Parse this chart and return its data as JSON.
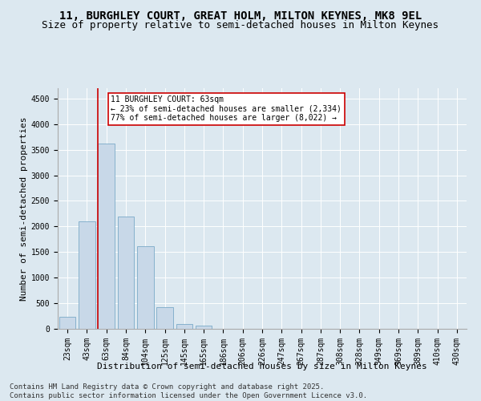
{
  "title": "11, BURGHLEY COURT, GREAT HOLM, MILTON KEYNES, MK8 9EL",
  "subtitle": "Size of property relative to semi-detached houses in Milton Keynes",
  "xlabel": "Distribution of semi-detached houses by size in Milton Keynes",
  "ylabel": "Number of semi-detached properties",
  "categories": [
    "23sqm",
    "43sqm",
    "63sqm",
    "84sqm",
    "104sqm",
    "125sqm",
    "145sqm",
    "165sqm",
    "186sqm",
    "206sqm",
    "226sqm",
    "247sqm",
    "267sqm",
    "287sqm",
    "308sqm",
    "328sqm",
    "349sqm",
    "369sqm",
    "389sqm",
    "410sqm",
    "430sqm"
  ],
  "values": [
    230,
    2100,
    3620,
    2200,
    1620,
    430,
    100,
    60,
    0,
    0,
    0,
    0,
    0,
    0,
    0,
    0,
    0,
    0,
    0,
    0,
    0
  ],
  "bar_color": "#c8d8e8",
  "bar_edge_color": "#7aaac8",
  "vline_color": "#cc0000",
  "annotation_title": "11 BURGHLEY COURT: 63sqm",
  "annotation_line1": "← 23% of semi-detached houses are smaller (2,334)",
  "annotation_line2": "77% of semi-detached houses are larger (8,022) →",
  "annotation_box_edgecolor": "#cc0000",
  "ylim": [
    0,
    4700
  ],
  "yticks": [
    0,
    500,
    1000,
    1500,
    2000,
    2500,
    3000,
    3500,
    4000,
    4500
  ],
  "bg_color": "#dce8f0",
  "footer1": "Contains HM Land Registry data © Crown copyright and database right 2025.",
  "footer2": "Contains public sector information licensed under the Open Government Licence v3.0.",
  "title_fontsize": 10,
  "subtitle_fontsize": 9,
  "axis_label_fontsize": 8,
  "tick_fontsize": 7,
  "footer_fontsize": 6.5,
  "annot_fontsize": 7
}
